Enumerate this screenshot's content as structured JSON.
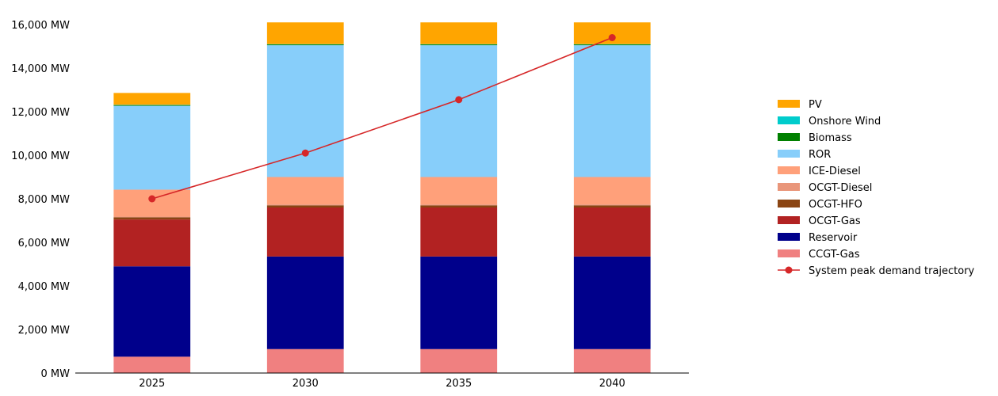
{
  "chart_data": {
    "type": "bar",
    "stacked": true,
    "categories": [
      "2025",
      "2030",
      "2035",
      "2040"
    ],
    "ylim": [
      0,
      16000
    ],
    "yticks": [
      0,
      2000,
      4000,
      6000,
      8000,
      10000,
      12000,
      14000,
      16000
    ],
    "ytick_labels": [
      "0 MW",
      "2,000 MW",
      "4,000 MW",
      "6,000 MW",
      "8,000 MW",
      "10,000 MW",
      "12,000 MW",
      "14,000 MW",
      "16,000 MW"
    ],
    "series": [
      {
        "name": "CCGT-Gas",
        "color": "#f08080",
        "values": [
          750,
          1100,
          1100,
          1100
        ]
      },
      {
        "name": "Reservoir",
        "color": "#00008b",
        "values": [
          4150,
          4250,
          4250,
          4250
        ]
      },
      {
        "name": "OCGT-Gas",
        "color": "#b22222",
        "values": [
          2150,
          2250,
          2250,
          2250
        ]
      },
      {
        "name": "OCGT-HFO",
        "color": "#8b4513",
        "values": [
          100,
          100,
          100,
          100
        ]
      },
      {
        "name": "OCGT-Diesel",
        "color": "#e9967a",
        "values": [
          30,
          40,
          40,
          40
        ]
      },
      {
        "name": "ICE-Diesel",
        "color": "#ffa07a",
        "values": [
          1240,
          1260,
          1260,
          1260
        ]
      },
      {
        "name": "ROR",
        "color": "#87cefa",
        "values": [
          3850,
          6050,
          6050,
          6050
        ]
      },
      {
        "name": "Biomass",
        "color": "#008000",
        "values": [
          30,
          40,
          40,
          40
        ]
      },
      {
        "name": "Onshore Wind",
        "color": "#00cccc",
        "values": [
          10,
          10,
          10,
          10
        ]
      },
      {
        "name": "PV",
        "color": "#ffa500",
        "values": [
          550,
          1000,
          1000,
          1000
        ]
      }
    ],
    "line": {
      "name": "System peak demand trajectory",
      "color": "#d62728",
      "values": [
        8000,
        10100,
        12550,
        15400
      ]
    },
    "legend_order": [
      "PV",
      "Onshore Wind",
      "Biomass",
      "ROR",
      "ICE-Diesel",
      "OCGT-Diesel",
      "OCGT-HFO",
      "OCGT-Gas",
      "Reservoir",
      "CCGT-Gas",
      "System peak demand trajectory"
    ],
    "legend_position": "right"
  }
}
